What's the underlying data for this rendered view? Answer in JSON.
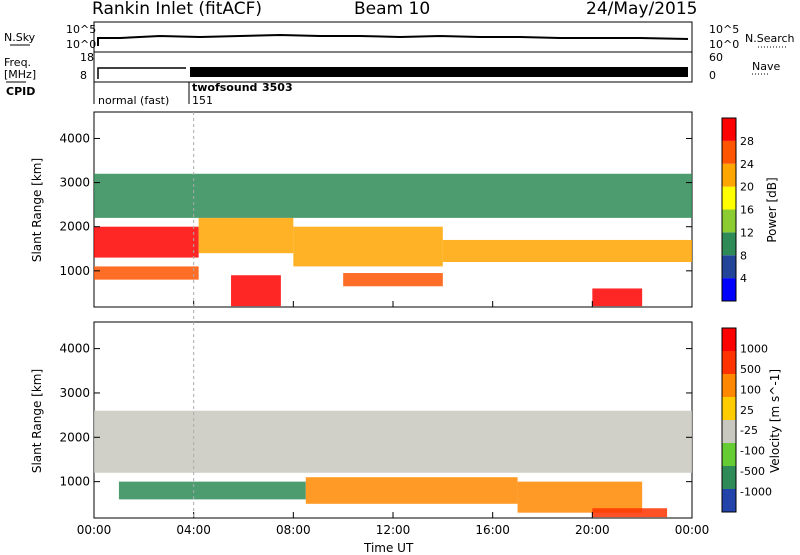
{
  "header": {
    "station": "Rankin Inlet (fitACF)",
    "beam": "Beam 10",
    "date": "24/May/2015"
  },
  "summary_panel": {
    "left_top_label": "N.Sky",
    "left_mid_label": "Freq.",
    "left_unit_label": "[MHz]",
    "cpid_label": "CPID",
    "right_top_label": "N.Search",
    "right_bottom_label": "Nave",
    "nsky_ticks": [
      "10^5",
      "10^0"
    ],
    "freq_ticks": [
      "18",
      "8"
    ],
    "nsearch_ticks": [
      "10^5",
      "10^0"
    ],
    "nave_ticks": [
      "60",
      "0"
    ],
    "modes": [
      {
        "name": "normal (fast)",
        "cpid": "151",
        "start_hour": 0.0
      },
      {
        "name": "twofsound",
        "cpid": "3503",
        "start_hour": 4.0
      }
    ]
  },
  "chart_data": [
    {
      "type": "heatmap",
      "name": "power",
      "ylabel": "Slant Range [km]",
      "yticks": [
        "1000",
        "2000",
        "3000",
        "4000"
      ],
      "ylim": [
        180,
        4600
      ],
      "xlim": [
        0,
        24
      ],
      "colorbar_label": "Power [dB]",
      "colorbar_ticks": [
        "28",
        "24",
        "20",
        "16",
        "12",
        "8",
        "4"
      ],
      "colors": [
        "#0000ff",
        "#224499",
        "#2e8b57",
        "#8ccc33",
        "#ffff00",
        "#ffa500",
        "#ff5500",
        "#ff0000"
      ],
      "bands": [
        {
          "x": [
            0.0,
            4.2
          ],
          "y": [
            1300,
            2000
          ],
          "level": 7
        },
        {
          "x": [
            0.0,
            4.2
          ],
          "y": [
            800,
            1100
          ],
          "level": 6
        },
        {
          "x": [
            4.2,
            8.0
          ],
          "y": [
            1400,
            2200
          ],
          "level": 5
        },
        {
          "x": [
            5.5,
            7.5
          ],
          "y": [
            200,
            900
          ],
          "level": 7
        },
        {
          "x": [
            8.0,
            14.0
          ],
          "y": [
            1100,
            2000
          ],
          "level": 5
        },
        {
          "x": [
            10.0,
            14.0
          ],
          "y": [
            650,
            950
          ],
          "level": 6
        },
        {
          "x": [
            14.0,
            24.0
          ],
          "y": [
            1200,
            1700
          ],
          "level": 5
        },
        {
          "x": [
            20.0,
            22.0
          ],
          "y": [
            200,
            600
          ],
          "level": 7
        },
        {
          "x": [
            0.0,
            24.0
          ],
          "y": [
            2200,
            3200
          ],
          "level": 2
        }
      ]
    },
    {
      "type": "heatmap",
      "name": "velocity",
      "ylabel": "Slant Range [km]",
      "yticks": [
        "1000",
        "2000",
        "3000",
        "4000"
      ],
      "ylim": [
        180,
        4600
      ],
      "xlim": [
        0,
        24
      ],
      "xticks": [
        "00:00",
        "04:00",
        "08:00",
        "12:00",
        "16:00",
        "20:00",
        "00:00"
      ],
      "xlabel": "Time UT",
      "colorbar_label": "Velocity [m s^-1]",
      "colorbar_ticks": [
        "1000",
        "500",
        "100",
        "25",
        "-25",
        "-100",
        "-500",
        "-1000"
      ],
      "colors": [
        "#2244aa",
        "#2e8b57",
        "#66cc33",
        "#c8c8c0",
        "#ffcc00",
        "#ff8800",
        "#ff3300",
        "#ff0000"
      ],
      "bands": [
        {
          "x": [
            0.0,
            24.0
          ],
          "y": [
            1200,
            2600
          ],
          "level": 3
        },
        {
          "x": [
            1.0,
            8.5
          ],
          "y": [
            600,
            1000
          ],
          "level": 1
        },
        {
          "x": [
            8.5,
            17.0
          ],
          "y": [
            500,
            1100
          ],
          "level": 5
        },
        {
          "x": [
            17.0,
            22.0
          ],
          "y": [
            300,
            1000
          ],
          "level": 5
        },
        {
          "x": [
            20.0,
            23.0
          ],
          "y": [
            200,
            400
          ],
          "level": 6
        }
      ]
    }
  ]
}
